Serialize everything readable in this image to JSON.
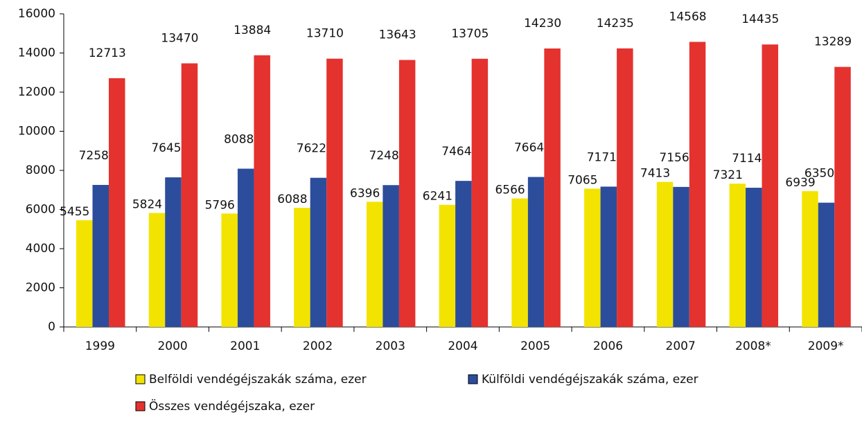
{
  "chart_data": {
    "type": "bar",
    "categories": [
      "1999",
      "2000",
      "2001",
      "2002",
      "2003",
      "2004",
      "2005",
      "2006",
      "2007",
      "2008*",
      "2009*"
    ],
    "series": [
      {
        "name": "Belföldi vendégéjszakák száma, ezer",
        "color": "#f2e400",
        "values": [
          5455,
          5824,
          5796,
          6088,
          6396,
          6241,
          6566,
          7065,
          7413,
          7321,
          6939
        ]
      },
      {
        "name": "Külföldi vendégéjszakák száma, ezer",
        "color": "#2c4d9c",
        "values": [
          7258,
          7645,
          8088,
          7622,
          7248,
          7464,
          7664,
          7171,
          7156,
          7114,
          6350
        ]
      },
      {
        "name": "Összes vendégéjszaka, ezer",
        "color": "#e4322f",
        "values": [
          12713,
          13470,
          13884,
          13710,
          13643,
          13705,
          14230,
          14235,
          14568,
          14435,
          13289
        ]
      }
    ],
    "ylim": [
      0,
      16000
    ],
    "yticks": [
      0,
      2000,
      4000,
      6000,
      8000,
      10000,
      12000,
      14000,
      16000
    ],
    "grid": false
  }
}
